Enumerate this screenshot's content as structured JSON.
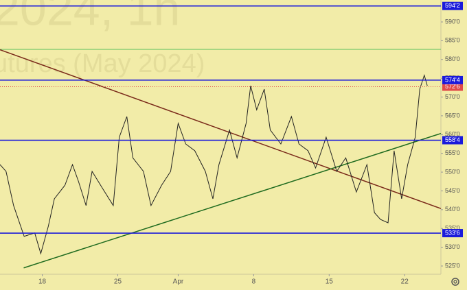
{
  "chart_data": {
    "type": "line",
    "watermark": [
      "2024, 1h",
      "utures (May 2024)"
    ],
    "x": [
      -2.8,
      -2.4,
      -1.9,
      -1.2,
      -0.5,
      -0.1,
      0.4,
      0.8,
      1.5,
      2.0,
      2.4,
      2.9,
      3.3,
      4.0,
      4.7,
      5.1,
      5.6,
      6.0,
      6.7,
      7.2,
      7.9,
      8.5,
      9.0,
      9.5,
      10.1,
      10.8,
      11.3,
      11.7,
      12.4,
      12.9,
      13.5,
      13.8,
      14.2,
      14.7,
      15.1,
      15.8,
      16.5,
      17.0,
      17.6,
      18.1,
      18.8,
      19.5,
      20.1,
      20.8,
      21.5,
      22.0,
      22.4,
      22.9,
      23.3,
      23.8,
      24.2,
      24.7,
      25.0,
      25.3,
      25.5
    ],
    "series": [
      {
        "color": "#222222",
        "values": [
          552.0,
          550.2,
          541.1,
          532.9,
          533.8,
          528.3,
          535.6,
          542.9,
          546.5,
          552.0,
          547.5,
          541.1,
          550.2,
          545.6,
          541.1,
          559.3,
          564.8,
          553.8,
          550.2,
          541.1,
          546.5,
          550.2,
          563.0,
          557.5,
          555.7,
          550.2,
          542.9,
          552.0,
          561.2,
          553.8,
          563.0,
          573.0,
          566.6,
          572.1,
          561.2,
          557.5,
          564.8,
          557.5,
          555.7,
          551.1,
          559.3,
          550.2,
          553.8,
          544.7,
          552.0,
          539.2,
          537.4,
          536.5,
          555.7,
          542.9,
          552.0,
          559.3,
          572.1,
          575.8,
          573.0
        ]
      }
    ],
    "xlim": [
      -2.8,
      26.4
    ],
    "xticks": [
      {
        "value": 0,
        "label": "18"
      },
      {
        "value": 5,
        "label": "25"
      },
      {
        "value": 9,
        "label": "Apr"
      },
      {
        "value": 14,
        "label": "8"
      },
      {
        "value": 19,
        "label": "15"
      },
      {
        "value": 24,
        "label": "22"
      }
    ],
    "ylim": [
      522.81,
      595.84
    ],
    "yticks": [
      {
        "value": 525,
        "label": "525'0"
      },
      {
        "value": 530,
        "label": "530'0"
      },
      {
        "value": 535,
        "label": "535'0"
      },
      {
        "value": 540,
        "label": "540'0"
      },
      {
        "value": 545,
        "label": "545'0"
      },
      {
        "value": 550,
        "label": "550'0"
      },
      {
        "value": 555,
        "label": "555'0"
      },
      {
        "value": 560,
        "label": "560'0"
      },
      {
        "value": 565,
        "label": "565'0"
      },
      {
        "value": 570,
        "label": "570'0"
      },
      {
        "value": 575,
        "label": "575'0"
      },
      {
        "value": 580,
        "label": "580'0"
      },
      {
        "value": 585,
        "label": "585'0"
      },
      {
        "value": 590,
        "label": "590'0"
      }
    ],
    "levels": [
      {
        "value": 594.25,
        "label": "594'2",
        "color": "#1a1adb"
      },
      {
        "value": 574.5,
        "label": "574'4",
        "color": "#1a1adb"
      },
      {
        "value": 558.5,
        "label": "558'4",
        "color": "#1a1adb"
      },
      {
        "value": 533.75,
        "label": "533'6",
        "color": "#1a1adb"
      }
    ],
    "current": {
      "value": 572.75,
      "label": "572'6",
      "color": "#e04a4a"
    },
    "thin_level": {
      "value": 582.7,
      "color": "#5cc05c"
    },
    "trend_lines": [
      {
        "x": [
          -2.8,
          26.4
        ],
        "y": [
          582.6,
          540.3
        ],
        "color": "#7a2a1a"
      },
      {
        "x": [
          -1.23,
          26.4
        ],
        "y": [
          524.5,
          560.3
        ],
        "color": "#1f6b1f"
      }
    ]
  }
}
